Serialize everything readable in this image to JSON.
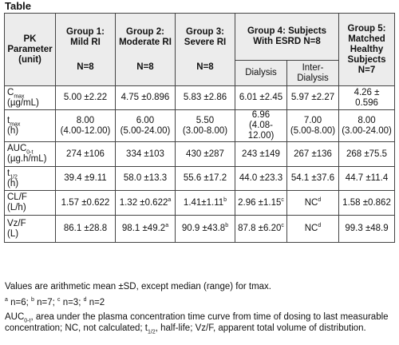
{
  "title": "Table",
  "header": {
    "param": "PK Parameter (unit)",
    "g1": "Group 1: Mild RI",
    "g2": "Group 2: Moderate RI",
    "g3": "Group 3: Severe RI",
    "g4": "Group 4: Subjects With ESRD N=8",
    "g5": "Group 5: Matched Healthy Subjects",
    "n1": "N=8",
    "n2": "N=8",
    "n3": "N=8",
    "n5": "N=7",
    "dialysis": "Dialysis",
    "inter": "Inter-Dialysis"
  },
  "rows": [
    {
      "p1": "C",
      "psub": "max",
      "p2": "(µg/mL)",
      "c": [
        "5.00 ±2.22",
        "4.75 ±0.896",
        "5.83 ±2.86",
        "6.01 ±2.45",
        "5.97 ±2.27",
        "4.26 ± 0.596"
      ]
    },
    {
      "p1": "t",
      "psub": "max",
      "p2": "(h)",
      "c": [
        "8.00",
        "6.00",
        "5.50",
        "6.96",
        "7.00",
        "8.00"
      ],
      "r": [
        "(4.00-12.00)",
        "(5.00-24.00)",
        "(3.00-8.00)",
        "(4.08-12.00)",
        "(5.00-8.00)",
        "(3.00-24.00)"
      ]
    },
    {
      "p1": "AUC",
      "psub": "0-t",
      "p2": "(µg.h/mL)",
      "c": [
        "274 ±106",
        "334 ±103",
        "430 ±287",
        "243 ±149",
        "267 ±136",
        "268 ±75.5"
      ]
    },
    {
      "p1": "t",
      "psub": "1/2",
      "p2": "(h)",
      "c": [
        "39.4 ±9.11",
        "58.0 ±13.3",
        "55.6 ±17.2",
        "44.0 ±23.3",
        "54.1 ±37.6",
        "44.7 ±11.4"
      ]
    },
    {
      "p1": "CL/F",
      "psub": "",
      "p2": "(L/h)",
      "c": [
        "1.57 ±0.622",
        "1.32 ±0.622",
        "1.41±1.11",
        "2.96 ±1.15",
        "NC",
        "1.58 ±0.862"
      ],
      "s": [
        "",
        "a",
        "b",
        "c",
        "d",
        ""
      ]
    },
    {
      "p1": "Vz/F",
      "psub": "",
      "p2": "(L)",
      "c": [
        "86.1 ±28.8",
        "98.1 ±49.2",
        "90.9 ±43.8",
        "87.8 ±6.20",
        "NC",
        "99.3 ±48.9"
      ],
      "s": [
        "",
        "a",
        "b",
        "c",
        "d",
        ""
      ]
    }
  ],
  "notes": {
    "n1": "Values are arithmetic mean ±SD, except median (range) for tmax.",
    "fa": "a",
    "fa_t": " n=6; ",
    "fb": "b",
    "fb_t": " n=7; ",
    "fc": "c",
    "fc_t": " n=3; ",
    "fd": "d",
    "fd_t": " n=2",
    "auc": "AUC",
    "auc_sub": "0-t",
    "auc_t": ", area under the plasma concentration time curve from time of dosing to last measurable concentration; NC, not calculated; t",
    "half_sub": "1/2",
    "half_t": ", half-life; Vz/F, apparent total volume of distribution."
  }
}
